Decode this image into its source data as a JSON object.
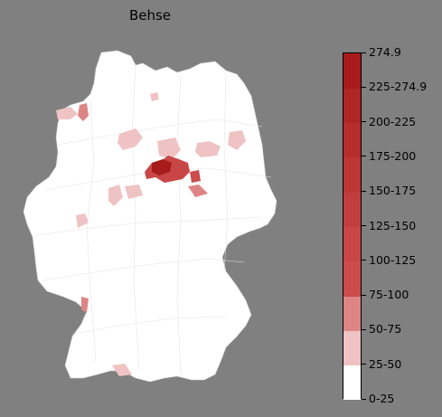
{
  "title": "Behse",
  "legend": {
    "labels": [
      "0-25",
      "25-50",
      "50-75",
      "75-100",
      "100-125",
      "125-150",
      "150-175",
      "175-200",
      "200-225",
      "225-274.9",
      "274.9"
    ],
    "colors": [
      "#ffffff",
      "#efc3c3",
      "#dd8585",
      "#cc4b4b",
      "#c84646",
      "#c23e3e",
      "#bd3535",
      "#b72c2c",
      "#b02525",
      "#a81b1b",
      "#9b0f1f"
    ]
  },
  "map": {
    "region": "Germany",
    "base_color": "#ffffff",
    "district_border_color": "#dcdcdc",
    "highlighted_districts": [
      {
        "bin": "25-50"
      },
      {
        "bin": "50-75"
      },
      {
        "bin": "75-100"
      },
      {
        "bin": "100-125"
      },
      {
        "bin": "150-175"
      }
    ]
  }
}
